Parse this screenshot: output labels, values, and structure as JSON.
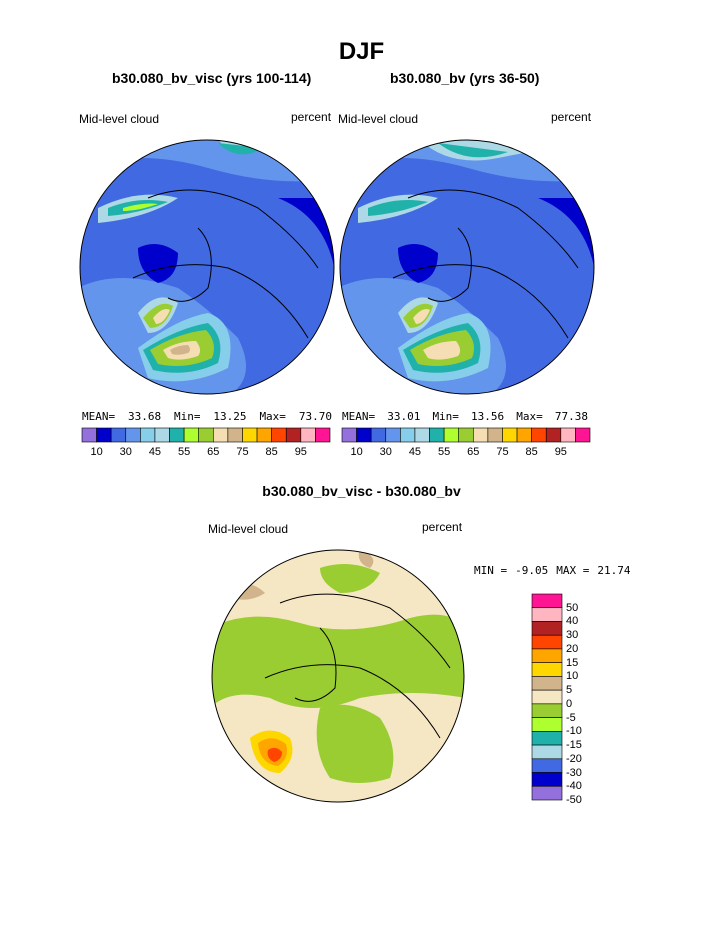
{
  "figure": {
    "title": "DJF"
  },
  "panels": [
    {
      "case_title": "b30.080_bv_visc (yrs 100-114)",
      "field_label": "Mid-level cloud",
      "units": "percent",
      "stats": {
        "mean_label": "MEAN=",
        "mean": "33.68",
        "min_label": "Min=",
        "min": "13.25",
        "max_label": "Max=",
        "max": "73.70"
      }
    },
    {
      "case_title": "b30.080_bv (yrs 36-50)",
      "field_label": "Mid-level cloud",
      "units": "percent",
      "stats": {
        "mean_label": "MEAN=",
        "mean": "33.01",
        "min_label": "Min=",
        "min": "13.56",
        "max_label": "Max=",
        "max": "77.38"
      }
    }
  ],
  "colorbar": {
    "colors": [
      "#9370db",
      "#0000cd",
      "#4169e1",
      "#6495ed",
      "#87ceeb",
      "#add8e6",
      "#20b2aa",
      "#adff2f",
      "#9acd32",
      "#f5deb3",
      "#d2b48c",
      "#ffd700",
      "#ffa500",
      "#ff4500",
      "#b22222",
      "#ffb6c1",
      "#ff1493"
    ],
    "tick_labels": [
      "10",
      "30",
      "45",
      "55",
      "65",
      "75",
      "85",
      "95"
    ]
  },
  "difference": {
    "title": "b30.080_bv_visc - b30.080_bv",
    "field_label": "Mid-level cloud",
    "units": "percent",
    "stats": {
      "min_label": "MIN =",
      "min": "-9.05",
      "max_label": "MAX =",
      "max": "21.74"
    },
    "colorbar": {
      "colors": [
        "#ff1493",
        "#ffb6c1",
        "#b22222",
        "#ff4500",
        "#ffa500",
        "#ffd700",
        "#d2b48c",
        "#f5e6c4",
        "#9acd32",
        "#adff2f",
        "#20b2aa",
        "#add8e6",
        "#4169e1",
        "#0000cd",
        "#9370db"
      ],
      "tick_labels": [
        "50",
        "40",
        "30",
        "20",
        "15",
        "10",
        "5",
        "0",
        "-5",
        "-10",
        "-15",
        "-20",
        "-30",
        "-40",
        "-50"
      ]
    }
  }
}
